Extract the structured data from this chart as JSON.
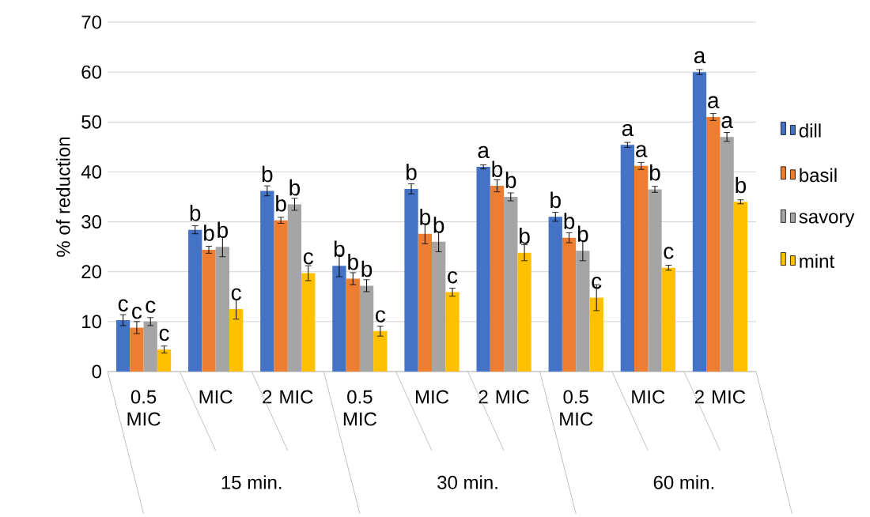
{
  "chart_data": {
    "type": "bar",
    "ylabel": "% of reduction",
    "categories": [
      "0.5 MIC",
      "MIC",
      "2 MIC",
      "0.5 MIC",
      "MIC",
      "2 MIC",
      "0.5 MIC",
      "MIC",
      "2 MIC"
    ],
    "annotations": [
      "15 min.",
      "30 min.",
      "60 min."
    ],
    "ylim": [
      0,
      70
    ],
    "yticks": [
      0,
      10,
      20,
      30,
      40,
      50,
      60,
      70
    ],
    "grid": "y",
    "legend": "right",
    "series": [
      {
        "name": "dill",
        "color": "#4472c4",
        "values": [
          10.3,
          28.4,
          36.2,
          21.2,
          36.6,
          41,
          31,
          45.4,
          60
        ],
        "errors": [
          1.1,
          0.8,
          1,
          2.2,
          1,
          0.4,
          0.9,
          0.5,
          0.5
        ],
        "value_labels": [
          "c",
          "b",
          "b",
          "b",
          "b",
          "a",
          "b",
          "a",
          "a"
        ]
      },
      {
        "name": "basil",
        "color": "#ed7d31",
        "values": [
          8.8,
          24.4,
          30.3,
          18.6,
          27.6,
          37.2,
          26.8,
          41.2,
          51
        ],
        "errors": [
          1.2,
          0.7,
          0.6,
          1.2,
          2,
          1.2,
          1,
          0.7,
          0.7
        ],
        "value_labels": [
          "c",
          "b",
          "b",
          "b",
          "b",
          "b",
          "b",
          "a",
          "a"
        ]
      },
      {
        "name": "savory",
        "color": "#a5a5a5",
        "values": [
          10,
          25,
          33.5,
          17.2,
          26,
          35,
          24.2,
          36.5,
          47
        ],
        "errors": [
          0.8,
          2,
          1.2,
          1.2,
          2,
          0.8,
          2,
          0.6,
          0.9
        ],
        "value_labels": [
          "c",
          "b",
          "b",
          "b",
          "b",
          "b",
          "b",
          "b",
          "a"
        ]
      },
      {
        "name": "mint",
        "color": "#ffc000",
        "values": [
          4.4,
          12.5,
          19.7,
          8.1,
          15.9,
          23.8,
          14.8,
          20.8,
          34
        ],
        "errors": [
          0.7,
          2,
          1.5,
          1,
          0.8,
          1.6,
          2.6,
          0.5,
          0.4
        ],
        "value_labels": [
          "c",
          "c",
          "c",
          "c",
          "c",
          "b",
          "c",
          "c",
          "b"
        ]
      }
    ]
  }
}
